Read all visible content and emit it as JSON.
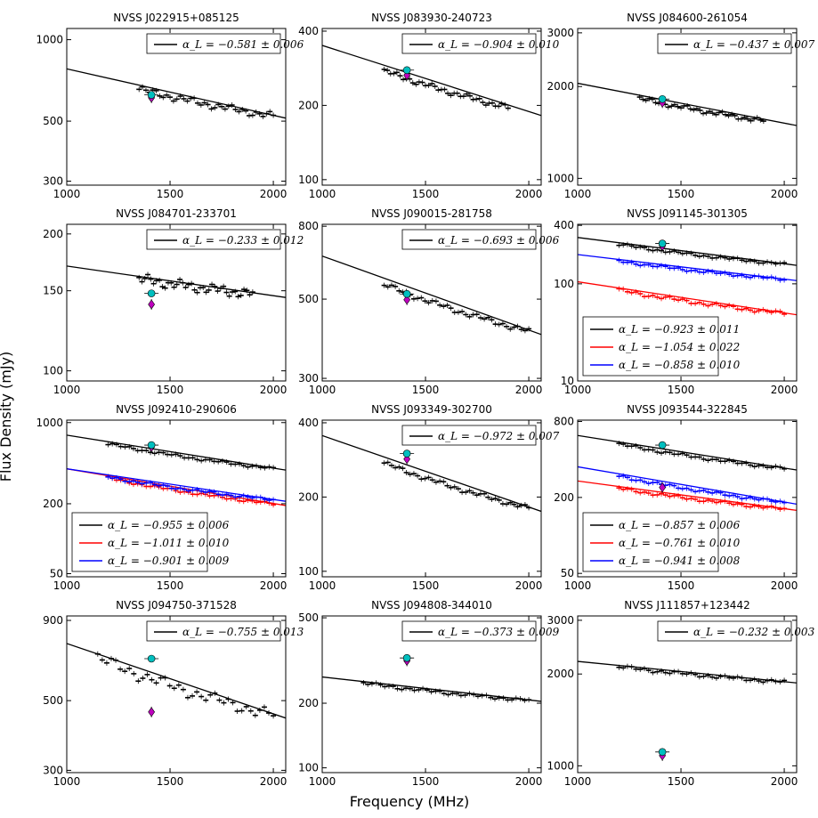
{
  "figure": {
    "ylabel": "Flux Density (mJy)",
    "xlabel": "Frequency (MHz)",
    "colors": {
      "black": "#000000",
      "red": "#ff0000",
      "blue": "#0000ff",
      "cyan": "#00bfbf",
      "magenta": "#bf00bf"
    }
  },
  "chart_data": [
    {
      "type": "scatter",
      "title": "NVSS J022915+085125",
      "xscale": "linear",
      "yscale": "log",
      "xlim": [
        1000,
        2060
      ],
      "ylim": [
        290,
        1100
      ],
      "xticks": [
        1000,
        1500,
        2000
      ],
      "yticks": [
        300,
        500,
        1000
      ],
      "legend_loc": "top-right",
      "series": [
        {
          "color": "black",
          "label": "α_L = −0.581 ± 0.006",
          "fit": [
            [
              1000,
              780
            ],
            [
              2060,
              513
            ]
          ],
          "obs_x": [
            1350,
            2000
          ],
          "obs_amp": 0.035
        }
      ],
      "markers": {
        "circle": [
          1410,
          625
        ],
        "diamond": [
          1410,
          610
        ]
      }
    },
    {
      "type": "scatter",
      "title": "NVSS J083930-240723",
      "xscale": "linear",
      "yscale": "log",
      "xlim": [
        1000,
        2060
      ],
      "ylim": [
        95,
        410
      ],
      "xticks": [
        1000,
        1500,
        2000
      ],
      "yticks": [
        100,
        200,
        400
      ],
      "legend_loc": "top-right",
      "series": [
        {
          "color": "black",
          "label": "α_L = −0.904 ± 0.010",
          "fit": [
            [
              1000,
              350
            ],
            [
              2060,
              182
            ]
          ],
          "obs_x": [
            1300,
            1900
          ],
          "obs_amp": 0.03
        }
      ],
      "markers": {
        "circle": [
          1410,
          278
        ],
        "diamond": [
          1410,
          265
        ]
      }
    },
    {
      "type": "scatter",
      "title": "NVSS J084600-261054",
      "xscale": "linear",
      "yscale": "log",
      "xlim": [
        1000,
        2060
      ],
      "ylim": [
        950,
        3100
      ],
      "xticks": [
        1000,
        1500,
        2000
      ],
      "yticks": [
        1000,
        2000,
        3000
      ],
      "legend_loc": "top-right",
      "series": [
        {
          "color": "black",
          "label": "α_L = −0.437 ± 0.007",
          "fit": [
            [
              1000,
              2050
            ],
            [
              2060,
              1490
            ]
          ],
          "obs_x": [
            1300,
            1900
          ],
          "obs_amp": 0.02
        }
      ],
      "markers": {
        "circle": [
          1410,
          1820
        ],
        "diamond": [
          1410,
          1770
        ]
      }
    },
    {
      "type": "scatter",
      "title": "NVSS J084701-233701",
      "xscale": "linear",
      "yscale": "log",
      "xlim": [
        1000,
        2060
      ],
      "ylim": [
        95,
        210
      ],
      "xticks": [
        1000,
        1500,
        2000
      ],
      "yticks": [
        100,
        150,
        200
      ],
      "legend_loc": "top-right",
      "series": [
        {
          "color": "black",
          "label": "α_L = −0.233 ± 0.012",
          "fit": [
            [
              1000,
              170
            ],
            [
              2060,
              145
            ]
          ],
          "obs_x": [
            1350,
            1900
          ],
          "obs_amp": 0.03
        }
      ],
      "markers": {
        "circle": [
          1410,
          148
        ],
        "diamond": [
          1410,
          140
        ]
      }
    },
    {
      "type": "scatter",
      "title": "NVSS J090015-281758",
      "xscale": "linear",
      "yscale": "log",
      "xlim": [
        1000,
        2060
      ],
      "ylim": [
        295,
        810
      ],
      "xticks": [
        1000,
        1500,
        2000
      ],
      "yticks": [
        300,
        500,
        800
      ],
      "legend_loc": "top-right",
      "series": [
        {
          "color": "black",
          "label": "α_L = −0.693 ± 0.006",
          "fit": [
            [
              1000,
              660
            ],
            [
              2060,
              398
            ]
          ],
          "obs_x": [
            1300,
            2000
          ],
          "obs_amp": 0.02
        }
      ],
      "markers": {
        "circle": [
          1410,
          517
        ],
        "diamond": [
          1410,
          498
        ]
      }
    },
    {
      "type": "scatter",
      "title": "NVSS J091145-301305",
      "xscale": "linear",
      "yscale": "log",
      "xlim": [
        1000,
        2060
      ],
      "ylim": [
        10,
        410
      ],
      "xticks": [
        1000,
        1500,
        2000
      ],
      "yticks": [
        10,
        100,
        400
      ],
      "legend_loc": "lower-left",
      "series": [
        {
          "color": "black",
          "label": "α_L = −0.923 ± 0.011",
          "fit": [
            [
              1000,
              300
            ],
            [
              2060,
              155
            ]
          ],
          "obs_x": [
            1200,
            2000
          ],
          "obs_amp": 0.035
        },
        {
          "color": "red",
          "label": "α_L = −1.054 ± 0.022",
          "fit": [
            [
              1000,
              105
            ],
            [
              2060,
              48
            ]
          ],
          "obs_x": [
            1200,
            2000
          ],
          "obs_amp": 0.05
        },
        {
          "color": "blue",
          "label": "α_L = −0.858 ± 0.010",
          "fit": [
            [
              1000,
              200
            ],
            [
              2060,
              108
            ]
          ],
          "obs_x": [
            1200,
            2000
          ],
          "obs_amp": 0.035
        }
      ],
      "markers": {
        "circle": [
          1410,
          260
        ],
        "diamond": [
          1410,
          245
        ]
      }
    },
    {
      "type": "scatter",
      "title": "NVSS J092410-290606",
      "xscale": "linear",
      "yscale": "log",
      "xlim": [
        1000,
        2060
      ],
      "ylim": [
        47,
        1050
      ],
      "xticks": [
        1000,
        1500,
        2000
      ],
      "yticks": [
        50,
        200,
        1000
      ],
      "legend_loc": "lower-left",
      "series": [
        {
          "color": "black",
          "label": "α_L = −0.955 ± 0.006",
          "fit": [
            [
              1000,
              780
            ],
            [
              2060,
              390
            ]
          ],
          "obs_x": [
            1200,
            2000
          ],
          "obs_amp": 0.03
        },
        {
          "color": "red",
          "label": "α_L = −1.011 ± 0.010",
          "fit": [
            [
              1000,
              400
            ],
            [
              2060,
              193
            ]
          ],
          "obs_x": [
            1200,
            2000
          ],
          "obs_amp": 0.03
        },
        {
          "color": "blue",
          "label": "α_L = −0.901 ± 0.009",
          "fit": [
            [
              1000,
              400
            ],
            [
              2060,
              210
            ]
          ],
          "obs_x": [
            1200,
            2000
          ],
          "obs_amp": 0.03
        }
      ],
      "markers": {
        "circle": [
          1410,
          640
        ],
        "diamond": [
          1410,
          615
        ]
      }
    },
    {
      "type": "scatter",
      "title": "NVSS J093349-302700",
      "xscale": "linear",
      "yscale": "log",
      "xlim": [
        1000,
        2060
      ],
      "ylim": [
        95,
        410
      ],
      "xticks": [
        1000,
        1500,
        2000
      ],
      "yticks": [
        100,
        200,
        400
      ],
      "legend_loc": "top-right",
      "series": [
        {
          "color": "black",
          "label": "α_L = −0.972 ± 0.007",
          "fit": [
            [
              1000,
              355
            ],
            [
              2060,
              175
            ]
          ],
          "obs_x": [
            1300,
            2000
          ],
          "obs_amp": 0.025
        }
      ],
      "markers": {
        "circle": [
          1410,
          300
        ],
        "diamond": [
          1410,
          285
        ]
      }
    },
    {
      "type": "scatter",
      "title": "NVSS J093544-322845",
      "xscale": "linear",
      "yscale": "log",
      "xlim": [
        1000,
        2060
      ],
      "ylim": [
        47,
        820
      ],
      "xticks": [
        1000,
        1500,
        2000
      ],
      "yticks": [
        50,
        200,
        800
      ],
      "legend_loc": "lower-left",
      "series": [
        {
          "color": "black",
          "label": "α_L = −0.857 ± 0.006",
          "fit": [
            [
              1000,
              620
            ],
            [
              2060,
              330
            ]
          ],
          "obs_x": [
            1200,
            2000
          ],
          "obs_amp": 0.03
        },
        {
          "color": "red",
          "label": "α_L = −0.761 ± 0.010",
          "fit": [
            [
              1000,
              270
            ],
            [
              2060,
              158
            ]
          ],
          "obs_x": [
            1200,
            2000
          ],
          "obs_amp": 0.03
        },
        {
          "color": "blue",
          "label": "α_L = −0.941 ± 0.008",
          "fit": [
            [
              1000,
              350
            ],
            [
              2060,
              177
            ]
          ],
          "obs_x": [
            1200,
            2000
          ],
          "obs_amp": 0.03
        }
      ],
      "markers": {
        "circle": [
          1410,
          520
        ],
        "diamond": [
          1410,
          240
        ]
      }
    },
    {
      "type": "scatter",
      "title": "NVSS J094750-371528",
      "xscale": "linear",
      "yscale": "log",
      "xlim": [
        1000,
        2060
      ],
      "ylim": [
        295,
        930
      ],
      "xticks": [
        1000,
        1500,
        2000
      ],
      "yticks": [
        300,
        500,
        900
      ],
      "legend_loc": "top-right",
      "series": [
        {
          "color": "black",
          "label": "α_L = −0.755 ± 0.013",
          "fit": [
            [
              1000,
              760
            ],
            [
              2060,
              440
            ]
          ],
          "obs_x": [
            1150,
            2000
          ],
          "obs_amp": 0.05
        }
      ],
      "markers": {
        "circle": [
          1410,
          680
        ],
        "diamond": [
          1410,
          460
        ]
      }
    },
    {
      "type": "scatter",
      "title": "NVSS J094808-344010",
      "xscale": "linear",
      "yscale": "log",
      "xlim": [
        1000,
        2060
      ],
      "ylim": [
        95,
        510
      ],
      "xticks": [
        1000,
        1500,
        2000
      ],
      "yticks": [
        100,
        200,
        500
      ],
      "legend_loc": "top-right",
      "series": [
        {
          "color": "black",
          "label": "α_L = −0.373 ± 0.009",
          "fit": [
            [
              1000,
              265
            ],
            [
              2060,
              204
            ]
          ],
          "obs_x": [
            1200,
            2000
          ],
          "obs_amp": 0.02
        }
      ],
      "markers": {
        "circle": [
          1410,
          325
        ],
        "diamond": [
          1410,
          315
        ]
      }
    },
    {
      "type": "scatter",
      "title": "NVSS J111857+123442",
      "xscale": "linear",
      "yscale": "log",
      "xlim": [
        1000,
        2060
      ],
      "ylim": [
        950,
        3100
      ],
      "xticks": [
        1000,
        1500,
        2000
      ],
      "yticks": [
        1000,
        2000,
        3000
      ],
      "legend_loc": "top-right",
      "series": [
        {
          "color": "black",
          "label": "α_L = −0.232 ± 0.003",
          "fit": [
            [
              1000,
              2200
            ],
            [
              2060,
              1870
            ]
          ],
          "obs_x": [
            1200,
            2000
          ],
          "obs_amp": 0.015
        }
      ],
      "markers": {
        "circle": [
          1410,
          1110
        ],
        "diamond": [
          1410,
          1080
        ]
      }
    }
  ]
}
